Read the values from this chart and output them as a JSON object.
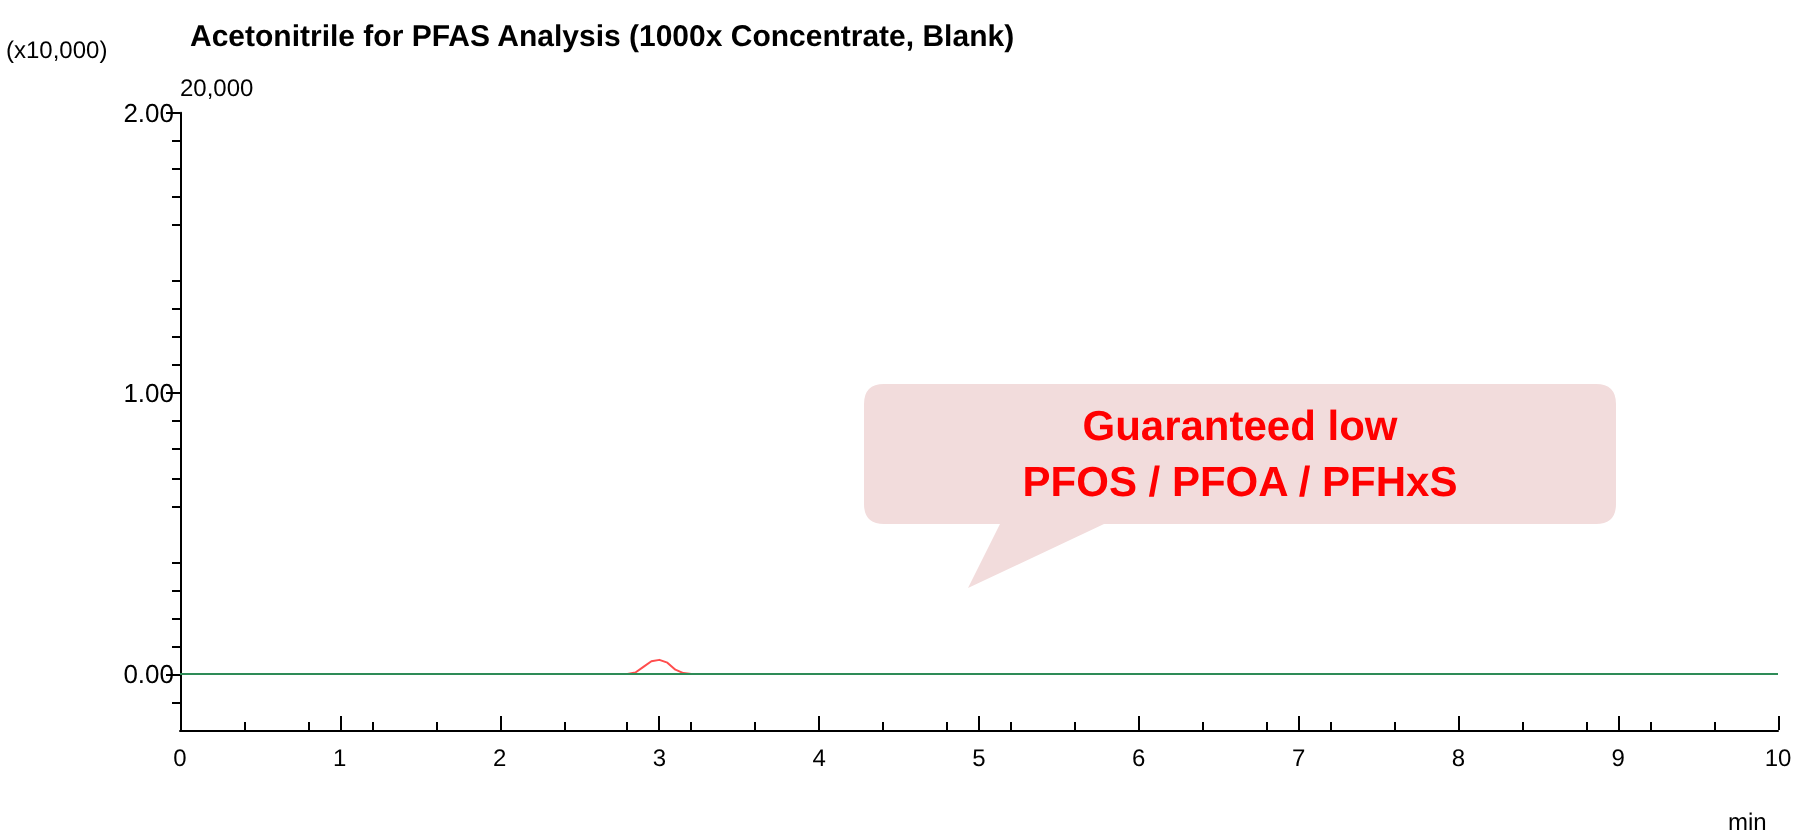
{
  "chart_data": {
    "type": "line",
    "title": "Acetonitrile for PFAS Analysis (1000x Concentrate, Blank)",
    "xlabel": "min",
    "ylabel": "(x10,000)",
    "annotations": [
      "20,000",
      "Guaranteed low\nPFOS / PFOA / PFHxS"
    ],
    "series": [
      {
        "color": "#ff4d4d",
        "x": [
          2.8,
          2.85,
          2.9,
          2.95,
          3.0,
          3.05,
          3.1,
          3.15,
          3.2
        ],
        "values": [
          0,
          0.005,
          0.025,
          0.045,
          0.05,
          0.04,
          0.015,
          0.003,
          0
        ]
      },
      {
        "color": "#2e8b57",
        "x": [
          0,
          2,
          4,
          6,
          8,
          10
        ],
        "values": [
          0,
          0,
          0,
          0,
          0,
          0
        ]
      }
    ],
    "xlim": [
      0,
      10
    ],
    "xticks": [
      0,
      1,
      2,
      3,
      4,
      5,
      6,
      7,
      8,
      9,
      10
    ],
    "ylim": [
      -0.2,
      2.0
    ],
    "yticks": [
      {
        "value": 0,
        "label": "0.00"
      },
      {
        "value": 1,
        "label": "1.00"
      },
      {
        "value": 2,
        "label": "2.00"
      }
    ],
    "grid": false,
    "marker": "none",
    "line_style": "solid"
  }
}
